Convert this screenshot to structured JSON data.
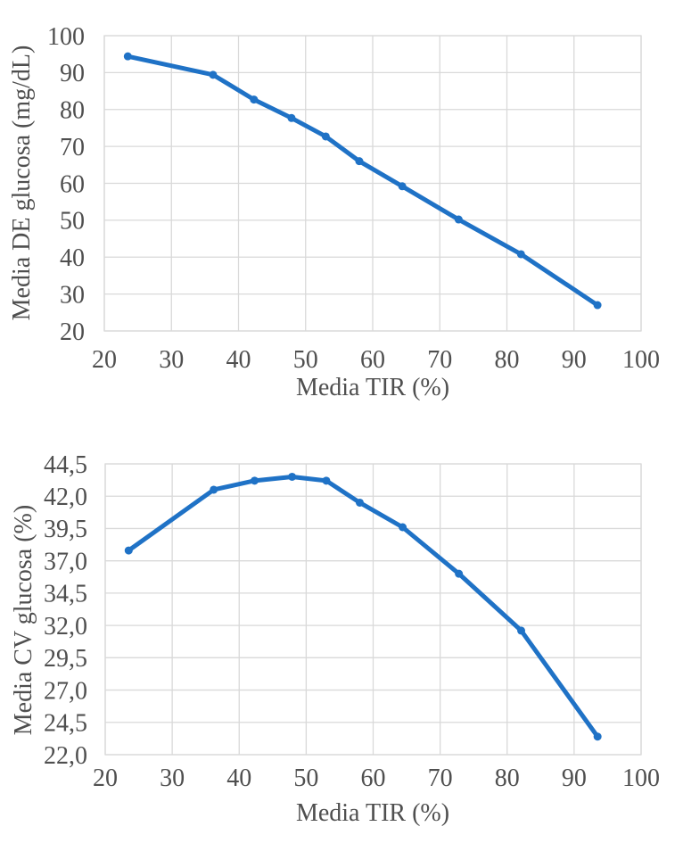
{
  "page": {
    "background": "#ffffff",
    "text_color": "#4f4f4f",
    "grid_color": "#d9d9d9",
    "accent_line_color": "#1f72c6"
  },
  "chart_data": [
    {
      "type": "line",
      "title": "",
      "xlabel": "Media TIR (%)",
      "ylabel": "Media DE glucosa (mg/dL)",
      "x": [
        23.5,
        36.2,
        42.3,
        47.9,
        53.0,
        58.0,
        64.4,
        72.8,
        82.1,
        93.5
      ],
      "y": [
        94.4,
        89.4,
        82.7,
        77.7,
        72.7,
        66.0,
        59.2,
        50.2,
        40.8,
        27.0
      ],
      "xlim": [
        20,
        100
      ],
      "ylim": [
        20,
        100
      ],
      "xtick_values": [
        20,
        30,
        40,
        50,
        60,
        70,
        80,
        90,
        100
      ],
      "xtick_labels": [
        "20",
        "30",
        "40",
        "50",
        "60",
        "70",
        "80",
        "90",
        "100"
      ],
      "ytick_values": [
        20,
        30,
        40,
        50,
        60,
        70,
        80,
        90,
        100
      ],
      "ytick_labels": [
        "20",
        "30",
        "40",
        "50",
        "60",
        "70",
        "80",
        "90",
        "100"
      ],
      "grid": true,
      "legend": false,
      "line_color": "#1f72c6",
      "marker": "dot"
    },
    {
      "type": "line",
      "title": "",
      "xlabel": "Media TIR (%)",
      "ylabel": "Media CV glucosa (%)",
      "x": [
        23.5,
        36.2,
        42.3,
        47.9,
        53.0,
        58.0,
        64.4,
        72.8,
        82.1,
        93.5
      ],
      "y": [
        37.8,
        42.5,
        43.2,
        43.5,
        43.2,
        41.5,
        39.6,
        36.0,
        31.6,
        23.4
      ],
      "xlim": [
        20,
        100
      ],
      "ylim": [
        22.0,
        44.5
      ],
      "xtick_values": [
        20,
        30,
        40,
        50,
        60,
        70,
        80,
        90,
        100
      ],
      "xtick_labels": [
        "20",
        "30",
        "40",
        "50",
        "60",
        "70",
        "80",
        "90",
        "100"
      ],
      "ytick_values": [
        22.0,
        24.5,
        27.0,
        29.5,
        32.0,
        34.5,
        37.0,
        39.5,
        42.0,
        44.5
      ],
      "ytick_labels": [
        "22,0",
        "24,5",
        "27,0",
        "29,5",
        "32,0",
        "34,5",
        "37,0",
        "39,5",
        "42,0",
        "44,5"
      ],
      "grid": true,
      "legend": false,
      "line_color": "#1f72c6",
      "marker": "dot"
    }
  ]
}
